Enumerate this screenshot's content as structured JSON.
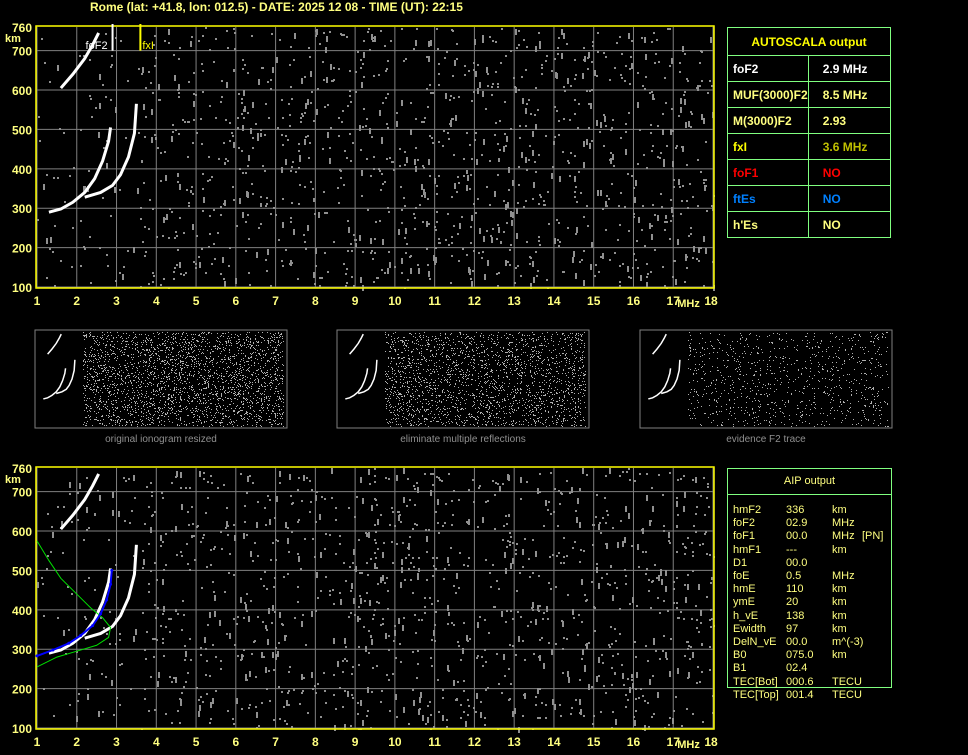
{
  "header": {
    "title": "Rome (lat: +41.8, lon: 012.5) - DATE: 2025 12 08 - TIME (UT): 22:15"
  },
  "autoscala": {
    "title": "AUTOSCALA output",
    "rows": [
      {
        "label": "foF2",
        "value": "2.9 MHz",
        "label_color": "#ffffff",
        "value_color": "#ffffff"
      },
      {
        "label": "MUF(3000)F2",
        "value": "8.5 MHz",
        "label_color": "#ffff80",
        "value_color": "#ffff80"
      },
      {
        "label": "M(3000)F2",
        "value": "2.93",
        "label_color": "#ffff80",
        "value_color": "#ffff80"
      },
      {
        "label": "fxI",
        "value": "3.6 MHz",
        "label_color": "#ffff00",
        "value_color": "#c0c000"
      },
      {
        "label": "foF1",
        "value": "NO",
        "label_color": "#ff0000",
        "value_color": "#ff0000"
      },
      {
        "label": "ftEs",
        "value": "NO",
        "label_color": "#0080ff",
        "value_color": "#0080ff"
      },
      {
        "label": "h'Es",
        "value": "NO",
        "label_color": "#ffff80",
        "value_color": "#ffff80"
      }
    ]
  },
  "aip": {
    "title": "AIP output",
    "rows": [
      {
        "name": "hmF2",
        "value": "336",
        "unit": "km",
        "extra": ""
      },
      {
        "name": "foF2",
        "value": "02.9",
        "unit": "MHz",
        "extra": ""
      },
      {
        "name": "foF1",
        "value": "00.0",
        "unit": "MHz",
        "extra": "[PN]"
      },
      {
        "name": "hmF1",
        "value": "---",
        "unit": "km",
        "extra": ""
      },
      {
        "name": "D1",
        "value": "00.0",
        "unit": "",
        "extra": ""
      },
      {
        "name": "foE",
        "value": "0.5",
        "unit": "MHz",
        "extra": ""
      },
      {
        "name": "hmE",
        "value": "110",
        "unit": "km",
        "extra": ""
      },
      {
        "name": "ymE",
        "value": "20",
        "unit": "km",
        "extra": ""
      },
      {
        "name": "h_vE",
        "value": "138",
        "unit": "km",
        "extra": ""
      },
      {
        "name": "Ewidth",
        "value": "97",
        "unit": "km",
        "extra": ""
      },
      {
        "name": "DelN_vE",
        "value": "00.0",
        "unit": "m^(-3)",
        "extra": ""
      },
      {
        "name": "B0",
        "value": "075.0",
        "unit": "km",
        "extra": ""
      },
      {
        "name": "B1",
        "value": "02.4",
        "unit": "",
        "extra": ""
      },
      {
        "name": "TEC[Bot]",
        "value": "000.6",
        "unit": "TECU",
        "extra": ""
      },
      {
        "name": "TEC[Top]",
        "value": "001.4",
        "unit": "TECU",
        "extra": ""
      }
    ]
  },
  "thumbnails": [
    {
      "caption": "original ionogram resized"
    },
    {
      "caption": "eliminate multiple reflections"
    },
    {
      "caption": "evidence F2 trace"
    }
  ],
  "chart_data": {
    "type": "scatter",
    "xlabel": "MHz",
    "ylabel": "km",
    "xlim": [
      1,
      18
    ],
    "ylim": [
      100,
      760
    ],
    "xticks": [
      "1",
      "2",
      "3",
      "4",
      "5",
      "6",
      "7",
      "8",
      "9",
      "10",
      "11",
      "12",
      "13",
      "14",
      "15",
      "16",
      "17",
      "18"
    ],
    "yticks": [
      "100",
      "200",
      "300",
      "400",
      "500",
      "600",
      "700",
      "760"
    ],
    "grid": true,
    "annotations": [
      {
        "text": "foF2",
        "x": 2.9,
        "color": "#ffffff"
      },
      {
        "text": "fxI",
        "x": 3.6,
        "color": "#ffff00"
      }
    ],
    "o_trace": [
      [
        1.3,
        290
      ],
      [
        1.6,
        298
      ],
      [
        1.9,
        315
      ],
      [
        2.2,
        340
      ],
      [
        2.45,
        375
      ],
      [
        2.65,
        420
      ],
      [
        2.8,
        470
      ],
      [
        2.85,
        505
      ]
    ],
    "x_trace": [
      [
        2.2,
        328
      ],
      [
        2.6,
        340
      ],
      [
        2.9,
        358
      ],
      [
        3.1,
        385
      ],
      [
        3.3,
        430
      ],
      [
        3.45,
        490
      ],
      [
        3.5,
        565
      ]
    ],
    "second_hop": [
      [
        1.6,
        605
      ],
      [
        1.9,
        640
      ],
      [
        2.2,
        680
      ],
      [
        2.4,
        715
      ],
      [
        2.55,
        745
      ]
    ],
    "fitted_o_trace": [
      [
        1.0,
        283
      ],
      [
        1.4,
        298
      ],
      [
        1.8,
        315
      ],
      [
        2.1,
        335
      ],
      [
        2.4,
        360
      ],
      [
        2.6,
        390
      ],
      [
        2.75,
        425
      ],
      [
        2.85,
        465
      ],
      [
        2.88,
        500
      ]
    ],
    "profile": [
      [
        1.0,
        575
      ],
      [
        1.3,
        525
      ],
      [
        1.6,
        480
      ],
      [
        2.0,
        440
      ],
      [
        2.35,
        405
      ],
      [
        2.65,
        380
      ],
      [
        2.85,
        355
      ],
      [
        2.8,
        330
      ],
      [
        2.5,
        310
      ],
      [
        2.0,
        295
      ],
      [
        1.5,
        280
      ],
      [
        1.0,
        255
      ]
    ],
    "colors": {
      "frame": "#ffff00",
      "grid": "#808080",
      "trace": "#ffffff",
      "noise": "#909090",
      "fit": "#0000ff",
      "profile": "#00e000"
    }
  }
}
